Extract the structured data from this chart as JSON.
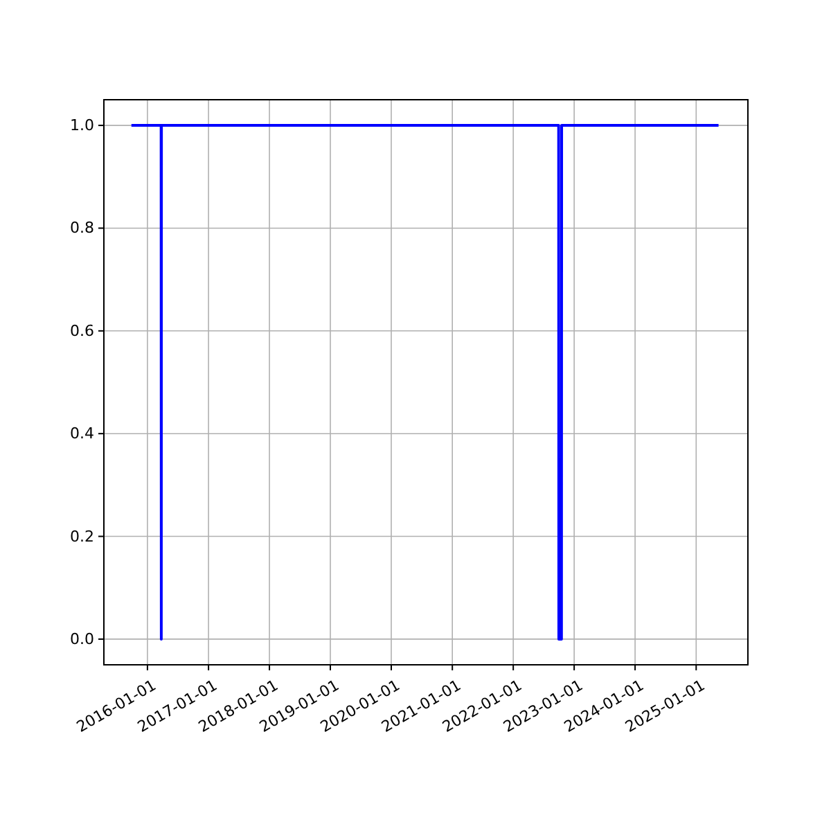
{
  "chart_data": {
    "type": "line",
    "x": [
      "2015-09-27",
      "2016-03-23",
      "2016-03-24",
      "2016-03-25",
      "2022-09-30",
      "2022-10-01",
      "2022-10-17",
      "2022-10-18",
      "2025-05-15"
    ],
    "series": [
      {
        "color": "#0000ff",
        "values": [
          1,
          1,
          0,
          1,
          1,
          0,
          0,
          1,
          1
        ]
      }
    ],
    "xlim": [
      "2015-04-15",
      "2025-11-07"
    ],
    "xticks": [
      "2016-01-01",
      "2017-01-01",
      "2018-01-01",
      "2019-01-01",
      "2020-01-01",
      "2021-01-01",
      "2022-01-01",
      "2023-01-01",
      "2024-01-01",
      "2025-01-01"
    ],
    "ylim": [
      -0.05,
      1.05
    ],
    "yticks": [
      {
        "value": 0,
        "label": "0.0"
      },
      {
        "value": 0.2,
        "label": "0.2"
      },
      {
        "value": 0.4,
        "label": "0.4"
      },
      {
        "value": 0.6,
        "label": "0.6"
      },
      {
        "value": 0.8,
        "label": "0.8"
      },
      {
        "value": 1,
        "label": "1.0"
      }
    ],
    "grid": true,
    "marker": "none",
    "line_style": "solid"
  }
}
